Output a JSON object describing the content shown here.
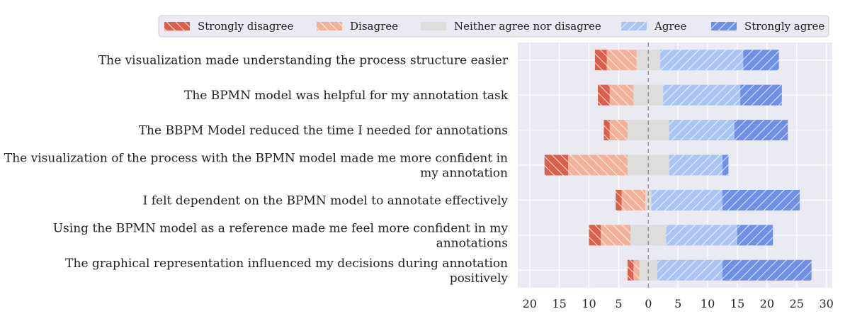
{
  "chart_data": {
    "type": "bar",
    "orientation": "horizontal",
    "stacked": "diverging",
    "title": "",
    "xlabel": "",
    "ylabel": "",
    "xlim": [
      -22,
      31
    ],
    "x_ticks": [
      -20,
      -15,
      -10,
      -5,
      0,
      5,
      10,
      15,
      20,
      25,
      30
    ],
    "x_tick_labels": [
      "20",
      "15",
      "10",
      "5",
      "0",
      "5",
      "10",
      "15",
      "20",
      "25",
      "30"
    ],
    "grid": true,
    "zero_line": "dashed",
    "legend_position": "top",
    "categories": [
      [
        "The visualization made understanding the process structure easier"
      ],
      [
        "The BPMN model was helpful for my annotation task"
      ],
      [
        "The BBPM Model reduced the time I needed for annotations"
      ],
      [
        "The visualization of the process with the BPMN model made me more confident in",
        "my annotation"
      ],
      [
        "I felt dependent on the BPMN model to annotate effectively"
      ],
      [
        "Using the BPMN model as a reference made me feel more confident in my",
        "annotations"
      ],
      [
        "The graphical representation influenced my decisions during annotation",
        "positively"
      ]
    ],
    "series": [
      {
        "name": "Strongly disagree",
        "color": "#d9604a",
        "hatch": "back",
        "values": [
          2,
          2,
          1,
          4,
          1,
          2,
          1
        ]
      },
      {
        "name": "Disagree",
        "color": "#f4b19a",
        "hatch": "back",
        "values": [
          5,
          4,
          3,
          10,
          4,
          5,
          1
        ]
      },
      {
        "name": "Neither agree nor disagree",
        "color": "#dcdddc",
        "hatch": "none",
        "values": [
          4,
          5,
          7,
          7,
          1,
          6,
          3
        ]
      },
      {
        "name": "Agree",
        "color": "#a9c4f5",
        "hatch": "forward",
        "values": [
          14,
          13,
          11,
          9,
          12,
          12,
          11
        ]
      },
      {
        "name": "Strongly agree",
        "color": "#7090e8",
        "hatch": "forward",
        "values": [
          6,
          7,
          9,
          1,
          13,
          6,
          15
        ]
      }
    ]
  }
}
